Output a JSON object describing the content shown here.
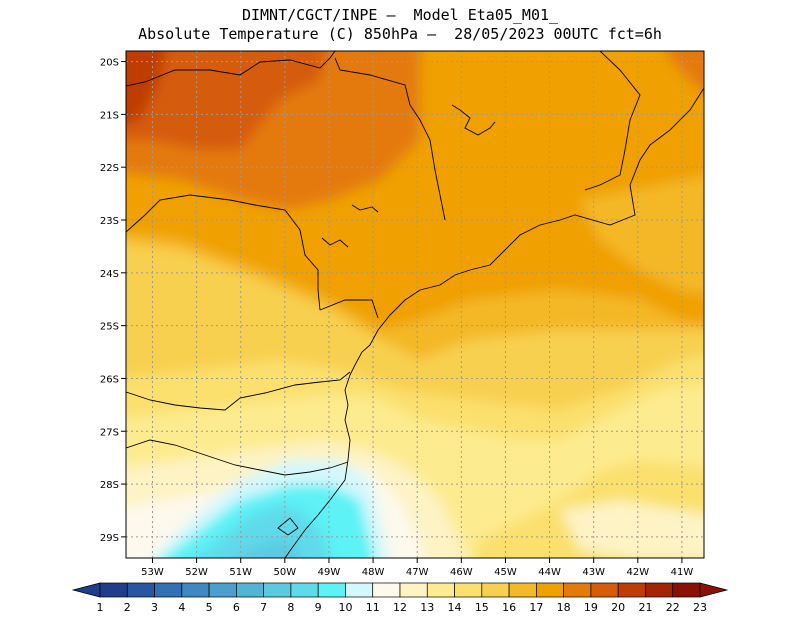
{
  "title": {
    "line1": "DIMNT/CGCT/INPE –  Model Eta05_M01_",
    "line2": "Absolute Temperature (C) 850hPa –  28/05/2023 00UTC fct=6h"
  },
  "map": {
    "lon_range": [
      -53.6,
      -40.5
    ],
    "lat_range": [
      -29.4,
      -19.8
    ],
    "lat_ticks": [
      {
        "value": -20,
        "label": "20S"
      },
      {
        "value": -21,
        "label": "21S"
      },
      {
        "value": -22,
        "label": "22S"
      },
      {
        "value": -23,
        "label": "23S"
      },
      {
        "value": -24,
        "label": "24S"
      },
      {
        "value": -25,
        "label": "25S"
      },
      {
        "value": -26,
        "label": "26S"
      },
      {
        "value": -27,
        "label": "27S"
      },
      {
        "value": -28,
        "label": "28S"
      },
      {
        "value": -29,
        "label": "29S"
      }
    ],
    "lon_ticks": [
      {
        "value": -53,
        "label": "53W"
      },
      {
        "value": -52,
        "label": "52W"
      },
      {
        "value": -51,
        "label": "51W"
      },
      {
        "value": -50,
        "label": "50W"
      },
      {
        "value": -49,
        "label": "49W"
      },
      {
        "value": -48,
        "label": "48W"
      },
      {
        "value": -47,
        "label": "47W"
      },
      {
        "value": -46,
        "label": "46W"
      },
      {
        "value": -45,
        "label": "45W"
      },
      {
        "value": -44,
        "label": "44W"
      },
      {
        "value": -43,
        "label": "43W"
      },
      {
        "value": -42,
        "label": "42W"
      },
      {
        "value": -41,
        "label": "41W"
      }
    ],
    "gridlines": "dotted"
  },
  "colorbar": {
    "labels": [
      "1",
      "2",
      "3",
      "4",
      "5",
      "6",
      "7",
      "8",
      "9",
      "10",
      "11",
      "12",
      "13",
      "14",
      "15",
      "16",
      "17",
      "18",
      "19",
      "20",
      "21",
      "22",
      "23"
    ],
    "colors": [
      "#1f3d8c",
      "#2856a3",
      "#3370b5",
      "#3f88c2",
      "#4a9fcc",
      "#52b5d6",
      "#5bc9e0",
      "#5fdaea",
      "#5cf2f6",
      "#d3f8fc",
      "#fdf9ec",
      "#fdf3c4",
      "#fdeb8f",
      "#fbe06e",
      "#f8d050",
      "#f4b828",
      "#f0a000",
      "#e47a08",
      "#d65c08",
      "#bf3c05",
      "#a52405",
      "#8a1204"
    ]
  }
}
